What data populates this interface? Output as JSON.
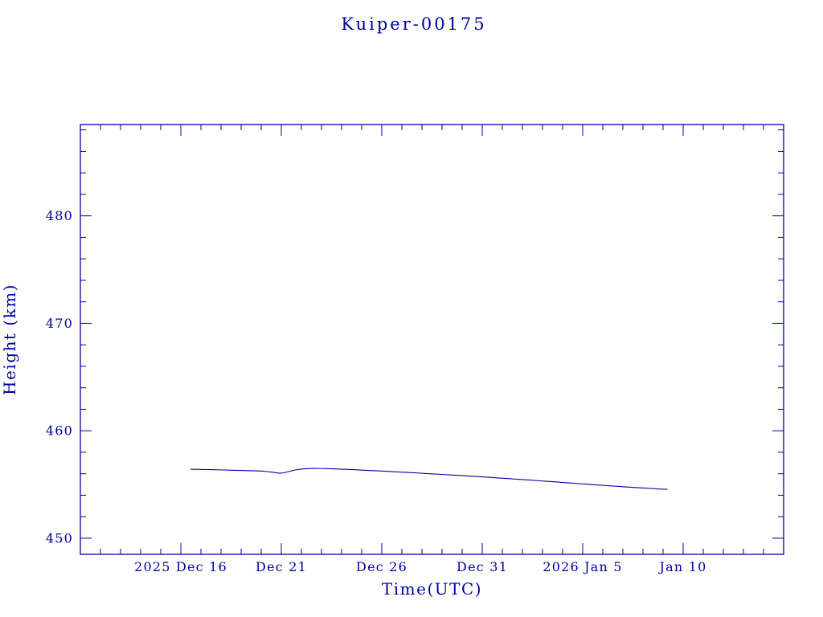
{
  "page": {
    "background": "#ffffff",
    "accent_color": "#0000A0"
  },
  "chart_data": {
    "type": "line",
    "title": "Kuiper-00175",
    "xlabel": "Time(UTC)",
    "ylabel": "Height (km)",
    "line_color": "#0000A0",
    "grid": false,
    "legend": "none",
    "x_axis": {
      "tick_labels": [
        "2025 Dec 16",
        "Dec 21",
        "Dec 26",
        "Dec 31",
        "2026 Jan 5",
        "Jan 10"
      ],
      "tick_positions_days": [
        5,
        10,
        15,
        20,
        25,
        30
      ],
      "day_zero_date": "2025 Dec 11",
      "range_days": [
        0,
        35
      ],
      "minor_step_days": 1
    },
    "y_axis": {
      "tick_labels": [
        450,
        460,
        470,
        480
      ],
      "range": [
        448.5,
        488.5
      ],
      "minor_step": 2
    },
    "series": [
      {
        "name": "height_km",
        "x_days": [
          5.5,
          6,
          6.5,
          7,
          7.5,
          8,
          8.5,
          9,
          9.3,
          9.6,
          9.9,
          10.1,
          10.4,
          10.7,
          11,
          11.3,
          11.6,
          12,
          12.4,
          12.8,
          13.2,
          13.6,
          14,
          14.4,
          14.8,
          15.2,
          15.6,
          16,
          16.4,
          16.8,
          17.2,
          17.6,
          18,
          18.4,
          18.8,
          19.2,
          19.6,
          20,
          20.4,
          20.8,
          21.2,
          21.6,
          22,
          22.4,
          22.8,
          23.2,
          23.6,
          24,
          24.4,
          24.8,
          25.2,
          25.6,
          26,
          26.4,
          26.8,
          27.2,
          27.6,
          28,
          28.4,
          28.8,
          29.2
        ],
        "values": [
          456.42,
          456.4,
          456.38,
          456.36,
          456.33,
          456.31,
          456.28,
          456.25,
          456.2,
          456.13,
          456.05,
          456.08,
          456.22,
          456.35,
          456.44,
          456.48,
          456.5,
          456.49,
          456.47,
          456.44,
          456.41,
          456.38,
          456.34,
          456.3,
          456.27,
          456.23,
          456.19,
          456.15,
          456.11,
          456.07,
          456.02,
          455.98,
          455.94,
          455.89,
          455.85,
          455.8,
          455.76,
          455.71,
          455.66,
          455.61,
          455.56,
          455.51,
          455.46,
          455.41,
          455.35,
          455.3,
          455.25,
          455.19,
          455.14,
          455.08,
          455.03,
          454.97,
          454.92,
          454.87,
          454.82,
          454.77,
          454.72,
          454.67,
          454.63,
          454.58,
          454.55
        ]
      }
    ]
  }
}
